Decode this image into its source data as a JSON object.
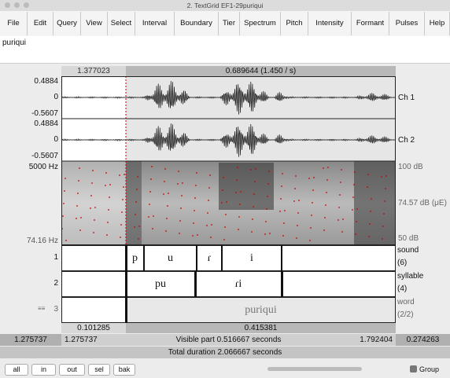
{
  "window": {
    "title": "2. TextGrid EF1-29puriqui"
  },
  "menu": [
    "File",
    "Edit",
    "Query",
    "View",
    "Select",
    "Interval",
    "Boundary",
    "Tier",
    "Spectrum",
    "Pitch",
    "Intensity",
    "Formant",
    "Pulses",
    "Help"
  ],
  "text_field": "puriqui",
  "time_top": {
    "left": "1.377023",
    "selection": "0.689644 (1.450 / s)"
  },
  "channels": [
    {
      "max": "0.4884",
      "zero": "0",
      "min": "-0.5607",
      "label": "Ch 1"
    },
    {
      "max": "0.4884",
      "zero": "0",
      "min": "-0.5607",
      "label": "Ch 2"
    }
  ],
  "spectrogram": {
    "fmax": "5000 Hz",
    "fmin": "74.16 Hz",
    "db_max": "100 dB",
    "db_mid": "74.57 dB (μE)",
    "db_min": "50 dB"
  },
  "tiers": [
    {
      "number": "1",
      "name": "sound",
      "count": "(6)",
      "intervals": [
        "p",
        "u",
        "ɾ",
        "i"
      ]
    },
    {
      "number": "2",
      "name": "syllable",
      "count": "(4)",
      "intervals": [
        "pu",
        "ɾi"
      ]
    },
    {
      "number": "3",
      "name": "word",
      "count": "(2/2)",
      "intervals": [
        "puriqui"
      ]
    }
  ],
  "time_bottom": {
    "left": "0.101285",
    "selection": "0.415381"
  },
  "status": {
    "start": "1.275737",
    "visible_start": "1.275737",
    "visible": "Visible part 0.516667 seconds",
    "visible_end": "1.792404",
    "after": "0.274263",
    "total": "Total duration 2.066667 seconds"
  },
  "buttons": [
    "all",
    "in",
    "out",
    "sel",
    "bak"
  ],
  "group": "Group"
}
